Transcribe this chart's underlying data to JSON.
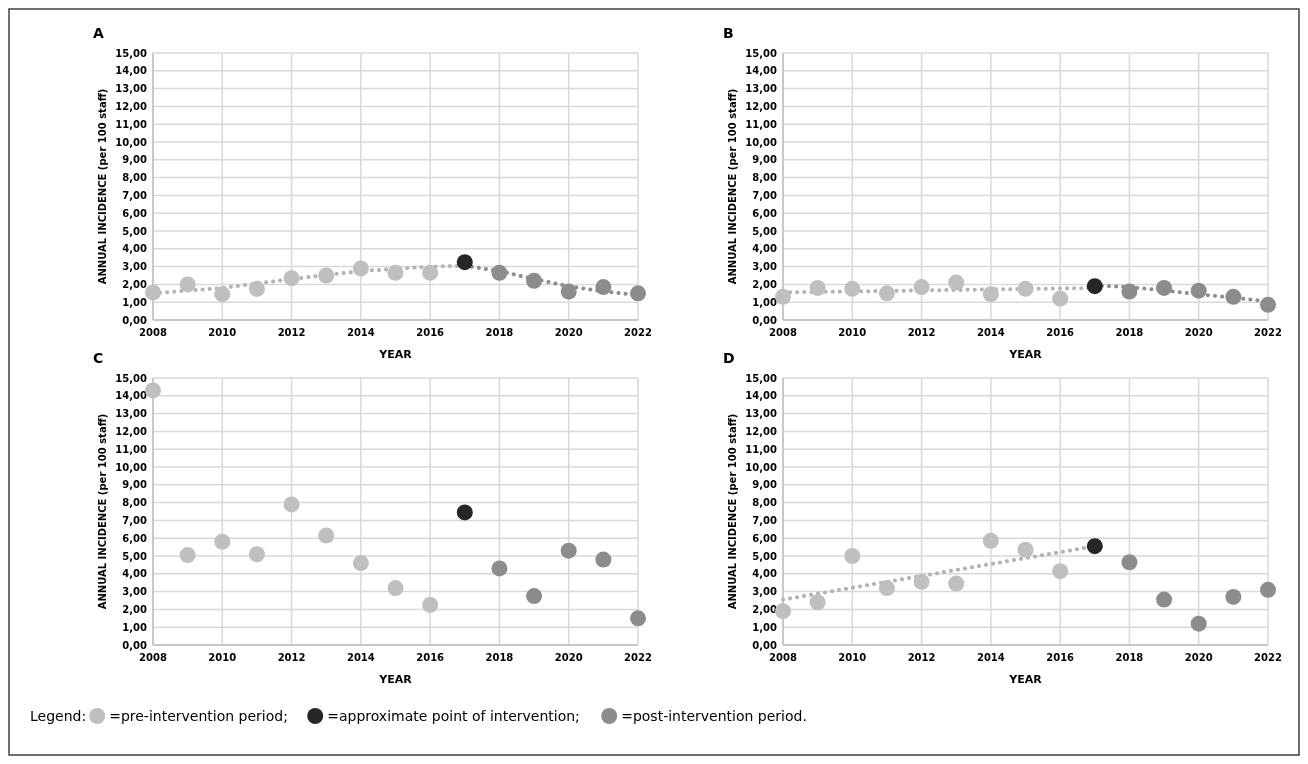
{
  "chart_data": [
    {
      "type": "scatter",
      "title": "A",
      "xlabel": "YEAR",
      "ylabel": "ANNUAL INCIDENCE (per 100 staff)",
      "xlim": [
        2008,
        2022
      ],
      "ylim": [
        0,
        15
      ],
      "xticks": [
        2008,
        2010,
        2012,
        2014,
        2016,
        2018,
        2020,
        2022
      ],
      "yticks": [
        {
          "value": 0,
          "label": "0,00"
        },
        {
          "value": 1,
          "label": "1,00"
        },
        {
          "value": 2,
          "label": "2,00"
        },
        {
          "value": 3,
          "label": "3,00"
        },
        {
          "value": 4,
          "label": "4,00"
        },
        {
          "value": 5,
          "label": "5,00"
        },
        {
          "value": 6,
          "label": "6,00"
        },
        {
          "value": 7,
          "label": "7,00"
        },
        {
          "value": 8,
          "label": "8,00"
        },
        {
          "value": 9,
          "label": "9,00"
        },
        {
          "value": 10,
          "label": "10,00"
        },
        {
          "value": 11,
          "label": "11,00"
        },
        {
          "value": 12,
          "label": "12,00"
        },
        {
          "value": 13,
          "label": "13,00"
        },
        {
          "value": 14,
          "label": "14,00"
        },
        {
          "value": 15,
          "label": "15,00"
        }
      ],
      "grid": true,
      "marker": "circle",
      "legend": "bottom",
      "legend_title": "Legend:",
      "series": [
        {
          "type": "line",
          "color": "#b3b3b3",
          "line_style": "dotted",
          "marker": "none",
          "x": [
            2008,
            2010,
            2012,
            2014,
            2016,
            2017
          ],
          "values": [
            1.5,
            1.8,
            2.3,
            2.75,
            3.0,
            3.05
          ]
        },
        {
          "type": "line",
          "color": "#8c8c8c",
          "line_style": "dotted",
          "marker": "none",
          "x": [
            2017,
            2018,
            2019,
            2020,
            2021,
            2022
          ],
          "values": [
            3.05,
            2.75,
            2.3,
            1.9,
            1.6,
            1.4
          ]
        },
        {
          "name": "=pre-intervention period;",
          "color": "#bfbfbf",
          "x": [
            2008,
            2009,
            2010,
            2011,
            2012,
            2013,
            2014,
            2015,
            2016
          ],
          "values": [
            1.55,
            2.0,
            1.45,
            1.75,
            2.35,
            2.5,
            2.9,
            2.65,
            2.65
          ]
        },
        {
          "name": "=approximate point of intervention;",
          "color": "#262626",
          "x": [
            2017
          ],
          "values": [
            3.25
          ]
        },
        {
          "name": "=post-intervention period.",
          "color": "#8c8c8c",
          "x": [
            2018,
            2019,
            2020,
            2021,
            2022
          ],
          "values": [
            2.65,
            2.2,
            1.6,
            1.85,
            1.5
          ]
        }
      ]
    },
    {
      "type": "scatter",
      "title": "B",
      "xlabel": "YEAR",
      "ylabel": "ANNUAL INCIDENCE (per 100 staff)",
      "xlim": [
        2008,
        2022
      ],
      "ylim": [
        0,
        15
      ],
      "xticks": [
        2008,
        2010,
        2012,
        2014,
        2016,
        2018,
        2020,
        2022
      ],
      "yticks": [
        {
          "value": 0,
          "label": "0,00"
        },
        {
          "value": 1,
          "label": "1,00"
        },
        {
          "value": 2,
          "label": "2,00"
        },
        {
          "value": 3,
          "label": "3,00"
        },
        {
          "value": 4,
          "label": "4,00"
        },
        {
          "value": 5,
          "label": "5,00"
        },
        {
          "value": 6,
          "label": "6,00"
        },
        {
          "value": 7,
          "label": "7,00"
        },
        {
          "value": 8,
          "label": "8,00"
        },
        {
          "value": 9,
          "label": "9,00"
        },
        {
          "value": 10,
          "label": "10,00"
        },
        {
          "value": 11,
          "label": "11,00"
        },
        {
          "value": 12,
          "label": "12,00"
        },
        {
          "value": 13,
          "label": "13,00"
        },
        {
          "value": 14,
          "label": "14,00"
        },
        {
          "value": 15,
          "label": "15,00"
        }
      ],
      "grid": true,
      "marker": "circle",
      "series": [
        {
          "type": "line",
          "color": "#b3b3b3",
          "line_style": "dotted",
          "marker": "none",
          "x": [
            2008,
            2017
          ],
          "values": [
            1.55,
            1.8
          ]
        },
        {
          "type": "line",
          "color": "#8c8c8c",
          "line_style": "dotted",
          "marker": "none",
          "x": [
            2017,
            2018,
            2019,
            2020,
            2021,
            2022
          ],
          "values": [
            1.95,
            1.85,
            1.65,
            1.45,
            1.25,
            1.05
          ]
        },
        {
          "color": "#bfbfbf",
          "x": [
            2008,
            2009,
            2010,
            2011,
            2012,
            2013,
            2014,
            2015,
            2016
          ],
          "values": [
            1.3,
            1.8,
            1.75,
            1.5,
            1.85,
            2.1,
            1.45,
            1.75,
            1.2
          ]
        },
        {
          "color": "#262626",
          "x": [
            2017
          ],
          "values": [
            1.9
          ]
        },
        {
          "color": "#8c8c8c",
          "x": [
            2018,
            2019,
            2020,
            2021,
            2022
          ],
          "values": [
            1.6,
            1.8,
            1.65,
            1.3,
            0.85
          ]
        }
      ]
    },
    {
      "type": "scatter",
      "title": "C",
      "xlabel": "YEAR",
      "ylabel": "ANNUAL INCIDENCE (per 100 staff)",
      "xlim": [
        2008,
        2022
      ],
      "ylim": [
        0,
        15
      ],
      "xticks": [
        2008,
        2010,
        2012,
        2014,
        2016,
        2018,
        2020,
        2022
      ],
      "yticks": [
        {
          "value": 0,
          "label": "0,00"
        },
        {
          "value": 1,
          "label": "1,00"
        },
        {
          "value": 2,
          "label": "2,00"
        },
        {
          "value": 3,
          "label": "3,00"
        },
        {
          "value": 4,
          "label": "4,00"
        },
        {
          "value": 5,
          "label": "5,00"
        },
        {
          "value": 6,
          "label": "6,00"
        },
        {
          "value": 7,
          "label": "7,00"
        },
        {
          "value": 8,
          "label": "8,00"
        },
        {
          "value": 9,
          "label": "9,00"
        },
        {
          "value": 10,
          "label": "10,00"
        },
        {
          "value": 11,
          "label": "11,00"
        },
        {
          "value": 12,
          "label": "12,00"
        },
        {
          "value": 13,
          "label": "13,00"
        },
        {
          "value": 14,
          "label": "14,00"
        },
        {
          "value": 15,
          "label": "15,00"
        }
      ],
      "grid": true,
      "marker": "circle",
      "series": [
        {
          "color": "#bfbfbf",
          "x": [
            2008,
            2009,
            2010,
            2011,
            2012,
            2013,
            2014,
            2015,
            2016
          ],
          "values": [
            14.3,
            5.05,
            5.8,
            5.1,
            7.9,
            6.15,
            4.6,
            3.2,
            2.25
          ]
        },
        {
          "color": "#262626",
          "x": [
            2017
          ],
          "values": [
            7.45
          ]
        },
        {
          "color": "#8c8c8c",
          "x": [
            2018,
            2019,
            2020,
            2021,
            2022
          ],
          "values": [
            4.3,
            2.75,
            5.3,
            4.8,
            1.5
          ]
        }
      ]
    },
    {
      "type": "scatter",
      "title": "D",
      "xlabel": "YEAR",
      "ylabel": "ANNUAL INCIDENCE (per 100 staff)",
      "xlim": [
        2008,
        2022
      ],
      "ylim": [
        0,
        15
      ],
      "xticks": [
        2008,
        2010,
        2012,
        2014,
        2016,
        2018,
        2020,
        2022
      ],
      "yticks": [
        {
          "value": 0,
          "label": "0,00"
        },
        {
          "value": 1,
          "label": "1,00"
        },
        {
          "value": 2,
          "label": "2,00"
        },
        {
          "value": 3,
          "label": "3,00"
        },
        {
          "value": 4,
          "label": "4,00"
        },
        {
          "value": 5,
          "label": "5,00"
        },
        {
          "value": 6,
          "label": "6,00"
        },
        {
          "value": 7,
          "label": "7,00"
        },
        {
          "value": 8,
          "label": "8,00"
        },
        {
          "value": 9,
          "label": "9,00"
        },
        {
          "value": 10,
          "label": "10,00"
        },
        {
          "value": 11,
          "label": "11,00"
        },
        {
          "value": 12,
          "label": "12,00"
        },
        {
          "value": 13,
          "label": "13,00"
        },
        {
          "value": 14,
          "label": "14,00"
        },
        {
          "value": 15,
          "label": "15,00"
        }
      ],
      "grid": true,
      "marker": "circle",
      "series": [
        {
          "type": "line",
          "color": "#b3b3b3",
          "line_style": "dotted",
          "marker": "none",
          "x": [
            2008,
            2017
          ],
          "values": [
            2.55,
            5.55
          ]
        },
        {
          "color": "#bfbfbf",
          "x": [
            2008,
            2009,
            2010,
            2011,
            2012,
            2013,
            2014,
            2015,
            2016
          ],
          "values": [
            1.9,
            2.4,
            5.0,
            3.2,
            3.55,
            3.45,
            5.85,
            5.35,
            4.15
          ]
        },
        {
          "color": "#262626",
          "x": [
            2017
          ],
          "values": [
            5.55
          ]
        },
        {
          "color": "#8c8c8c",
          "x": [
            2018,
            2019,
            2020,
            2021,
            2022
          ],
          "values": [
            4.65,
            2.55,
            1.2,
            2.7,
            3.1
          ]
        }
      ]
    }
  ]
}
